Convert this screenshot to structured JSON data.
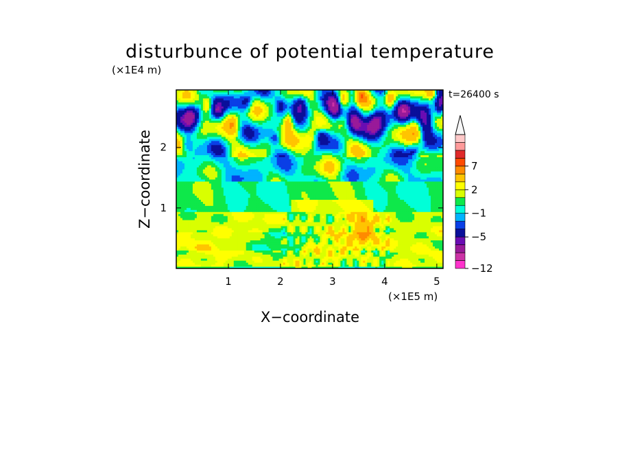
{
  "chart_data": {
    "type": "heatmap",
    "title": "disturbunce of potential temperature",
    "xlabel": "X−coordinate",
    "ylabel": "Z−coordinate",
    "x_unit": "(×1E5 m)",
    "y_unit": "(×1E4 m)",
    "time_label": "t=26400 s",
    "xlim": [
      0,
      5.12
    ],
    "ylim": [
      0,
      2.95
    ],
    "x_ticks": [
      1,
      2,
      3,
      4,
      5
    ],
    "y_ticks": [
      1,
      2
    ],
    "grid": false,
    "colorbar": {
      "placement": "right",
      "extend_top": true,
      "levels": [
        {
          "value": -12,
          "color": "#ff33cc"
        },
        {
          "value": -10,
          "color": "#cc33a6"
        },
        {
          "value": -8,
          "color": "#991a99"
        },
        {
          "value": -6,
          "color": "#6a0db3"
        },
        {
          "value": -5,
          "color": "#0a0f9a"
        },
        {
          "value": -3,
          "color": "#0a3fe6"
        },
        {
          "value": -2,
          "color": "#00b3ff"
        },
        {
          "value": -1,
          "color": "#00ffd8"
        },
        {
          "value": 0,
          "color": "#0ee84a"
        },
        {
          "value": 1,
          "color": "#d9ff00"
        },
        {
          "value": 2,
          "color": "#ffff00"
        },
        {
          "value": 3,
          "color": "#ffc400"
        },
        {
          "value": 5,
          "color": "#ff8a00"
        },
        {
          "value": 7,
          "color": "#ff4a00"
        },
        {
          "value": 8,
          "color": "#e02a2a"
        },
        {
          "value": 9,
          "color": "#ff9a9a"
        },
        {
          "value": 10,
          "color": "#ffc8c8"
        }
      ],
      "labeled_values": [
        7,
        2,
        -1,
        -5,
        -12
      ],
      "label_texts": [
        "7",
        "2",
        "−1",
        "−5",
        "−12"
      ],
      "extend_color": "#f7f7f7"
    }
  }
}
